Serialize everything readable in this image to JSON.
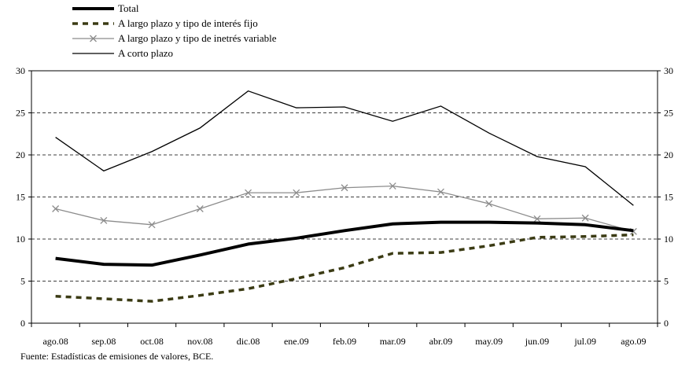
{
  "chart_data": {
    "type": "line",
    "categories": [
      "ago.08",
      "sep.08",
      "oct.08",
      "nov.08",
      "dic.08",
      "ene.09",
      "feb.09",
      "mar.09",
      "abr.09",
      "may.09",
      "jun.09",
      "jul.09",
      "ago.09"
    ],
    "ylim": [
      0,
      30
    ],
    "yticks": [
      0,
      5,
      10,
      15,
      20,
      25,
      30
    ],
    "grid": true,
    "legend_position": "top-left",
    "series": [
      {
        "name": "Total",
        "style": "thick-solid",
        "color": "#000000",
        "values": [
          7.7,
          7.0,
          6.9,
          8.1,
          9.4,
          10.1,
          11.0,
          11.8,
          12.0,
          12.0,
          11.9,
          11.7,
          11.0
        ]
      },
      {
        "name": "A largo plazo y tipo de interés fijo",
        "style": "dashed",
        "color": "#3b3b14",
        "values": [
          3.2,
          2.9,
          2.6,
          3.3,
          4.1,
          5.3,
          6.6,
          8.3,
          8.4,
          9.2,
          10.2,
          10.3,
          10.5
        ]
      },
      {
        "name": "A largo plazo y tipo de inetrés variable",
        "style": "cross-marker",
        "color": "#8c8c8c",
        "values": [
          13.6,
          12.2,
          11.7,
          13.6,
          15.5,
          15.5,
          16.1,
          16.3,
          15.6,
          14.2,
          12.4,
          12.5,
          10.9
        ]
      },
      {
        "name": "A corto plazo",
        "style": "thin-solid",
        "color": "#000000",
        "values": [
          22.1,
          18.1,
          20.4,
          23.2,
          27.6,
          25.6,
          25.7,
          24.0,
          25.8,
          22.6,
          19.8,
          18.6,
          14.0
        ]
      }
    ]
  },
  "source_note": "Fuente: Estadísticas de emisiones de valores, BCE."
}
